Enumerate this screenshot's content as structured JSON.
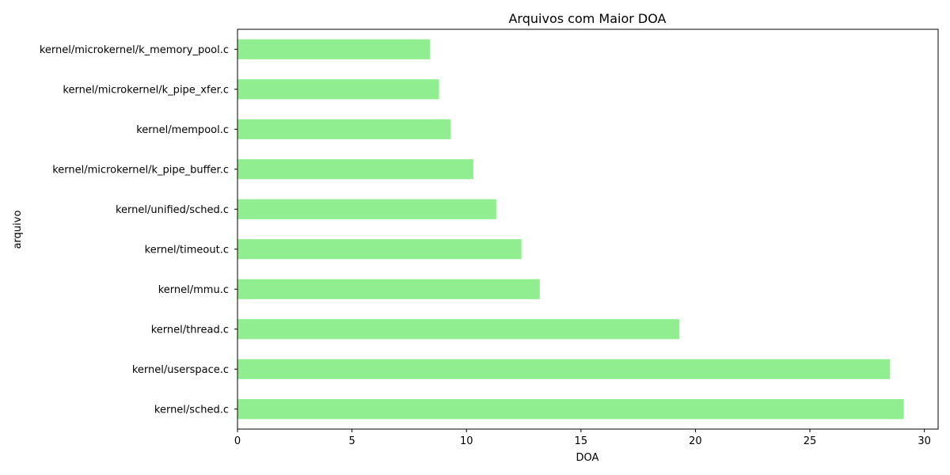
{
  "chart_data": {
    "type": "bar",
    "orientation": "horizontal",
    "title": "Arquivos com Maior DOA",
    "xlabel": "DOA",
    "ylabel": "arquivo",
    "xlim": [
      0,
      30.6
    ],
    "xticks": [
      0,
      5,
      10,
      15,
      20,
      25,
      30
    ],
    "bar_color": "#90ee90",
    "grid": false,
    "categories": [
      "kernel/sched.c",
      "kernel/userspace.c",
      "kernel/thread.c",
      "kernel/mmu.c",
      "kernel/timeout.c",
      "kernel/unified/sched.c",
      "kernel/microkernel/k_pipe_buffer.c",
      "kernel/mempool.c",
      "kernel/microkernel/k_pipe_xfer.c",
      "kernel/microkernel/k_memory_pool.c"
    ],
    "values": [
      29.1,
      28.5,
      19.3,
      13.2,
      12.4,
      11.3,
      10.3,
      9.3,
      8.8,
      8.4
    ]
  }
}
